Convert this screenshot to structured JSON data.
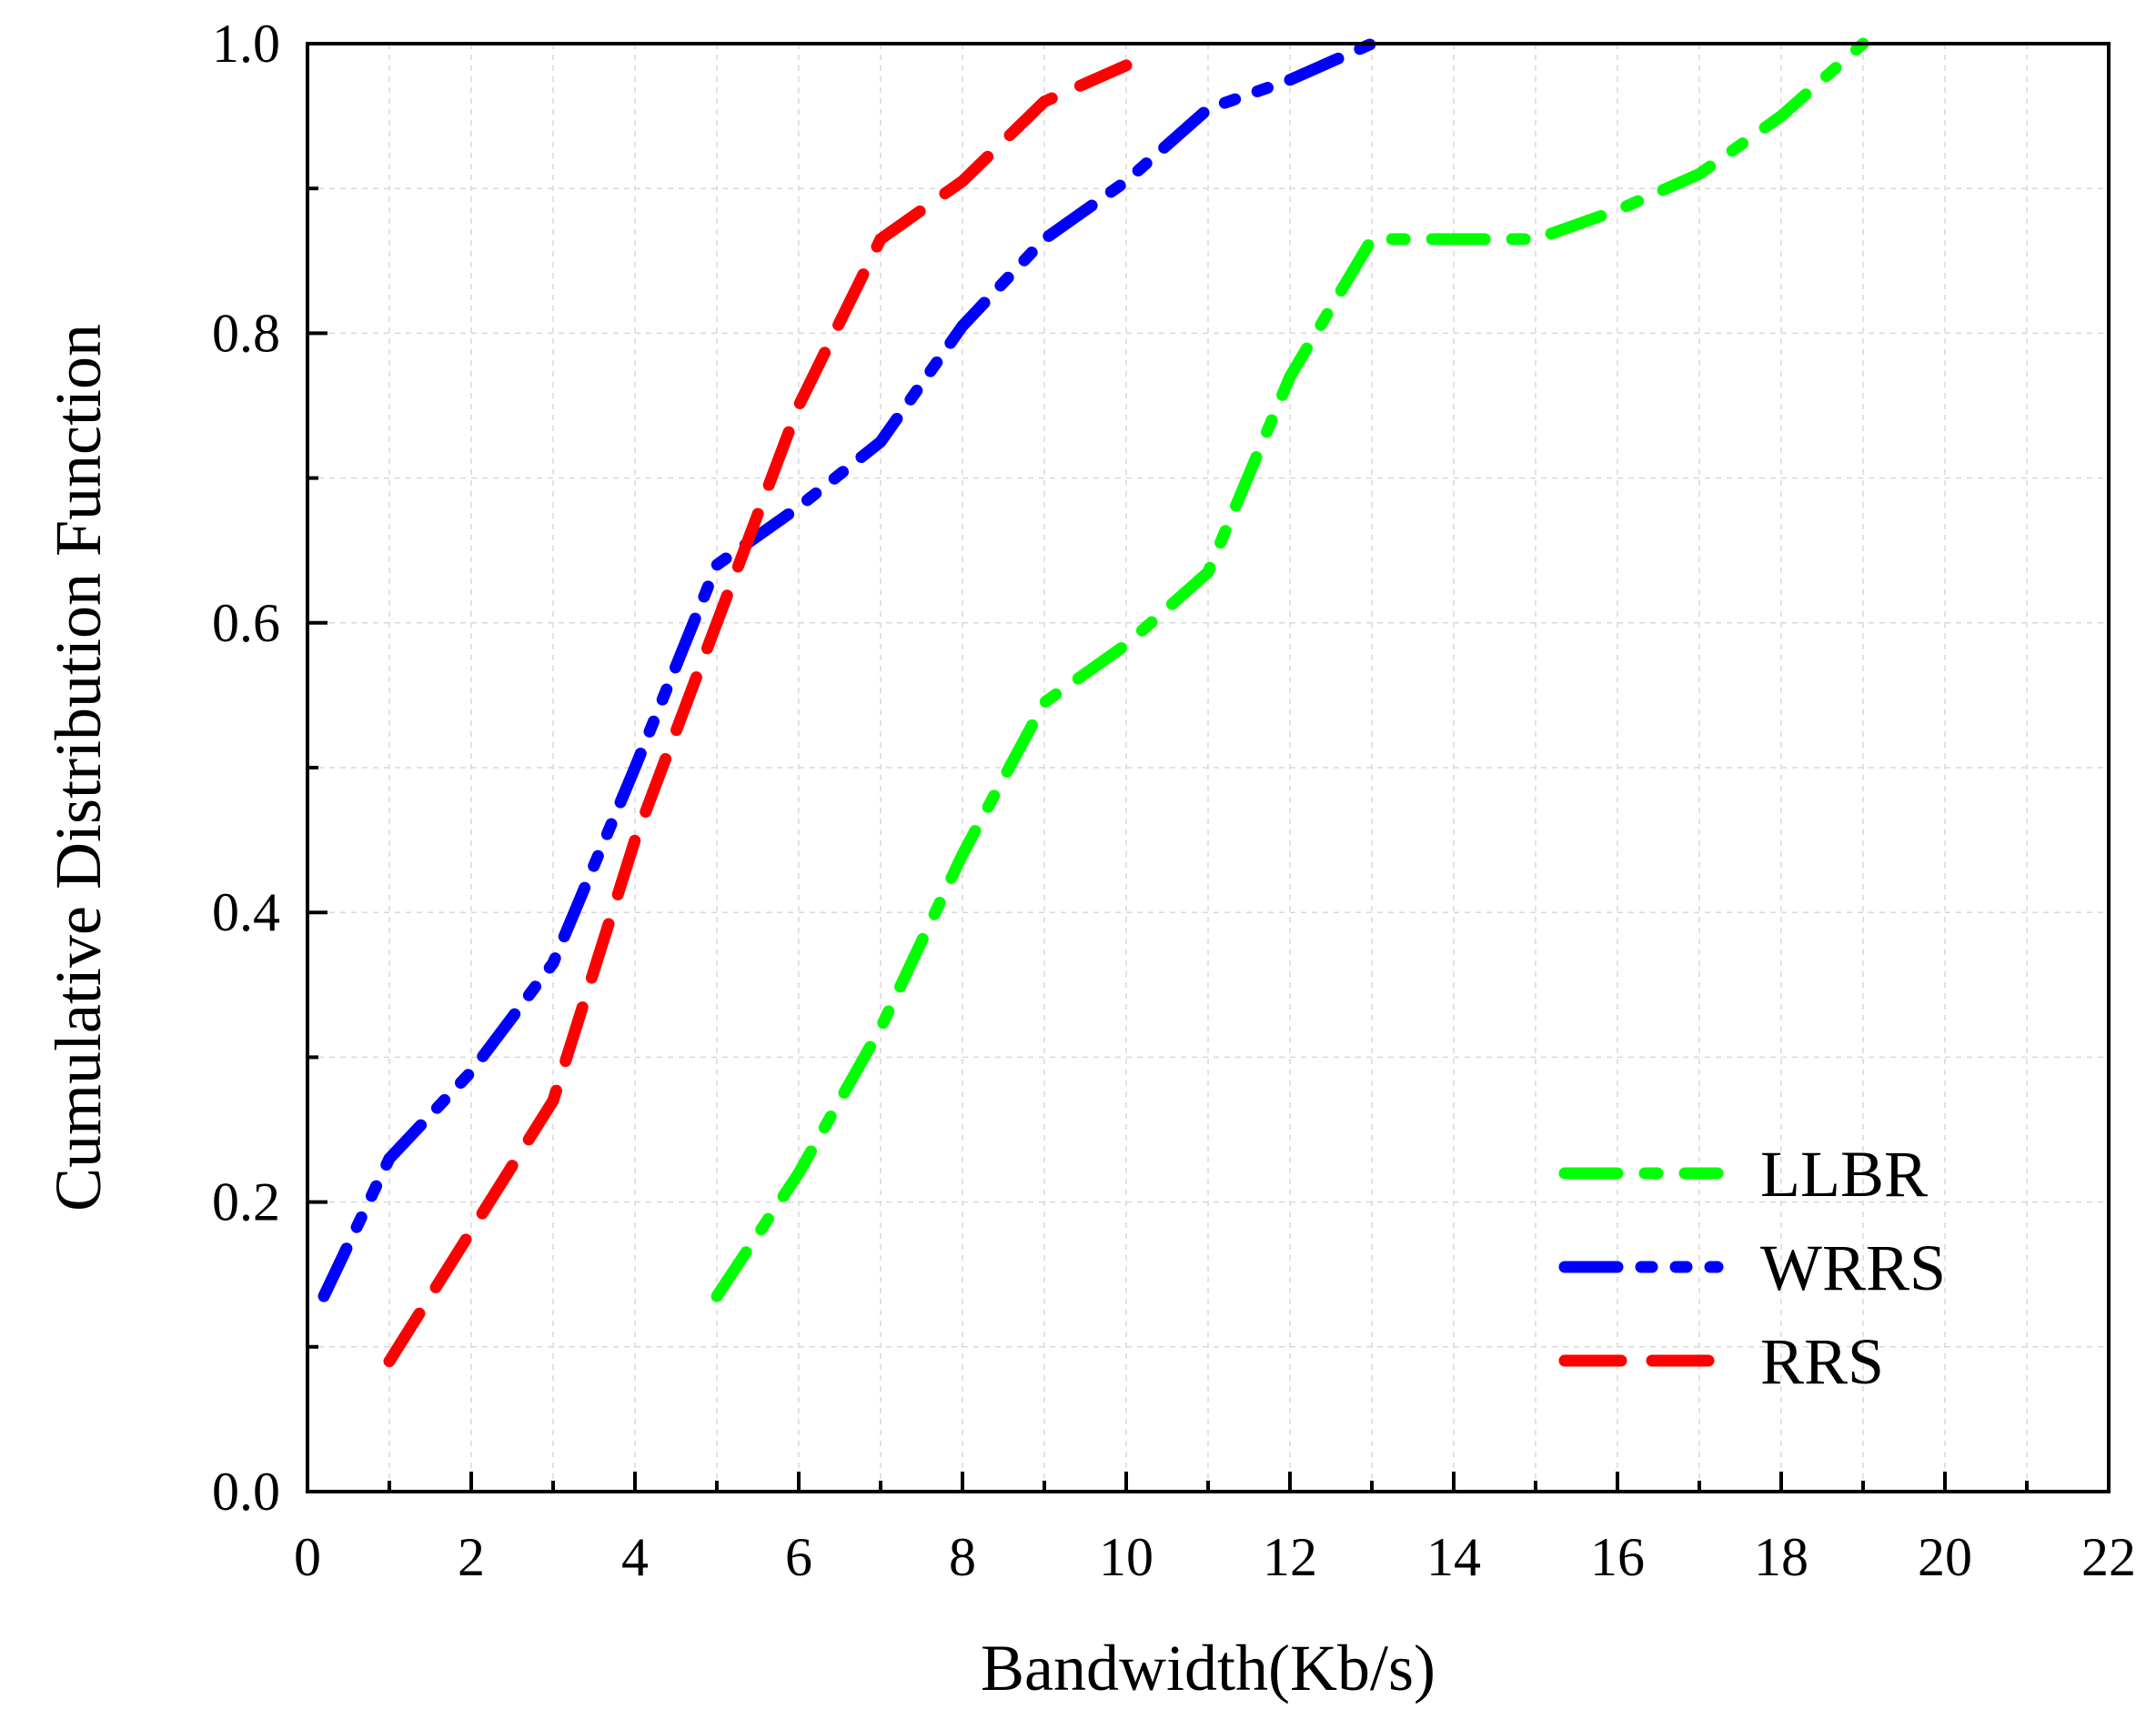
{
  "chart_data": {
    "type": "line",
    "title": "",
    "xlabel": "Bandwidth(Kb/s)",
    "ylabel": "Cumulative Distribution Function",
    "xlim": [
      0,
      22
    ],
    "ylim": [
      0,
      1.0
    ],
    "xticks": [
      "0",
      "2",
      "4",
      "6",
      "8",
      "10",
      "12",
      "14",
      "16",
      "18",
      "20",
      "22"
    ],
    "yticks": [
      "0.0",
      "0.2",
      "0.4",
      "0.6",
      "0.8",
      "1.0"
    ],
    "grid": true,
    "legend_position": "bottom-right",
    "series": [
      {
        "name": "LLBR",
        "color": "#00ff00",
        "dash": "dash-dot",
        "x": [
          5,
          6,
          7,
          8,
          9,
          10,
          11,
          12,
          13,
          14,
          15,
          16,
          17,
          18,
          19
        ],
        "y": [
          0.135,
          0.22,
          0.32,
          0.44,
          0.545,
          0.585,
          0.635,
          0.77,
          0.865,
          0.865,
          0.865,
          0.885,
          0.91,
          0.95,
          1.0
        ]
      },
      {
        "name": "WRRS",
        "color": "#0000ff",
        "dash": "dash-dot-dot",
        "x": [
          0.2,
          1,
          2,
          3,
          4,
          5,
          6,
          7,
          8,
          9,
          10,
          11,
          12,
          13
        ],
        "y": [
          0.135,
          0.23,
          0.29,
          0.365,
          0.5,
          0.64,
          0.68,
          0.725,
          0.805,
          0.865,
          0.905,
          0.955,
          0.975,
          1.0
        ]
      },
      {
        "name": "RRS",
        "color": "#ff0000",
        "dash": "dash",
        "x": [
          1,
          2,
          3,
          4,
          5,
          6,
          7,
          8,
          9,
          10
        ],
        "y": [
          0.09,
          0.18,
          0.27,
          0.45,
          0.6,
          0.75,
          0.865,
          0.905,
          0.96,
          0.985
        ]
      }
    ]
  }
}
